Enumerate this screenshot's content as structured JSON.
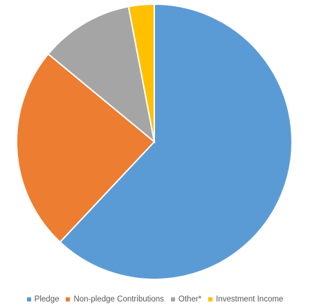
{
  "chart_data": {
    "type": "pie",
    "title": "",
    "categories": [
      "Pledge",
      "Non-pledge Contributions",
      "Other*",
      "Investment Income"
    ],
    "values": [
      62,
      24,
      11,
      3
    ],
    "unit": "percent (estimated share)",
    "colors": [
      "#5B9BD5",
      "#ED7D31",
      "#A5A5A5",
      "#FFC000"
    ],
    "start_angle_deg": 0,
    "direction": "clockwise",
    "legend_position": "bottom"
  }
}
